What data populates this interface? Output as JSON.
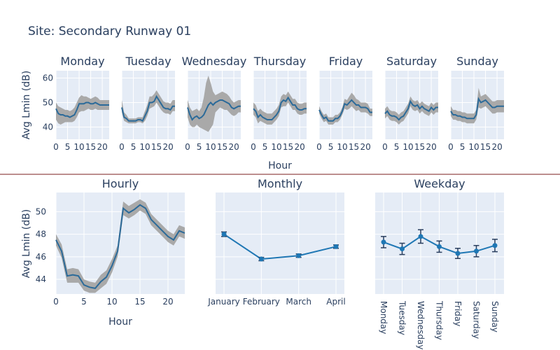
{
  "page": {
    "title": "Site: Secondary Runway 01"
  },
  "colors": {
    "plot_bg": "#e5ecf6",
    "grid": "#ffffff",
    "line": "#2b6a99",
    "band": "#a9a9a9",
    "marker": "#1f77b4",
    "divider": "#7b1c1c",
    "text": "#2a3f5f"
  },
  "chart_data": [
    {
      "type": "line",
      "name": "daily-grid",
      "ylabel": "Avg Lmin (dB)",
      "xlabel": "Hour",
      "ylim": [
        35,
        63
      ],
      "xlim": [
        0,
        23
      ],
      "yticks": [
        40,
        50,
        60
      ],
      "xticks": [
        0,
        5,
        10,
        15,
        20
      ],
      "panels": [
        {
          "day": "Monday",
          "y": [
            47.5,
            45.5,
            45,
            45,
            44.5,
            44.5,
            44,
            44.5,
            45,
            47,
            49.5,
            49.5,
            49.5,
            50,
            50,
            49.5,
            49.5,
            50,
            49.5,
            49,
            49,
            49,
            49,
            49
          ],
          "lo": [
            43,
            41.5,
            41,
            41.5,
            42,
            42,
            42,
            42,
            42.5,
            44,
            46,
            46.5,
            46.5,
            47,
            47.5,
            47,
            47,
            47.5,
            47,
            47,
            47,
            47,
            47,
            47
          ],
          "hi": [
            50,
            48.5,
            48,
            47.5,
            47,
            47,
            46.5,
            47,
            48,
            50,
            52,
            53,
            52.5,
            52.5,
            52,
            51.5,
            52,
            52.5,
            52,
            51,
            51,
            51,
            51,
            51
          ]
        },
        {
          "day": "Tuesday",
          "y": [
            48,
            44,
            43.5,
            42.5,
            42.5,
            42.5,
            42.5,
            43,
            43,
            42.5,
            44.5,
            46.5,
            50,
            50,
            50.5,
            52.5,
            51,
            49.5,
            48,
            47.5,
            47.5,
            47,
            48.5,
            48.5
          ],
          "lo": [
            46,
            42.5,
            42,
            41.5,
            41.5,
            41.5,
            41.5,
            42,
            42,
            41.5,
            42.5,
            44.5,
            47.5,
            48,
            48.5,
            50,
            48.5,
            47,
            46,
            45.5,
            45.5,
            45,
            46.5,
            46.5
          ],
          "hi": [
            51,
            46,
            45,
            43.5,
            43.5,
            43.5,
            43.5,
            44,
            44,
            44,
            46.5,
            49,
            52.5,
            52.5,
            53.5,
            55,
            53.5,
            52,
            50.5,
            50,
            50,
            49.5,
            51,
            51
          ]
        },
        {
          "day": "Wednesday",
          "y": [
            48,
            45,
            43,
            44,
            44.5,
            43.5,
            44,
            45,
            47,
            49,
            50,
            49,
            50,
            50.5,
            51,
            51,
            50.5,
            50,
            49.5,
            48,
            47.5,
            48,
            48.5,
            48.5
          ],
          "lo": [
            44,
            41,
            40,
            40,
            41,
            40,
            39.5,
            39,
            38.5,
            38,
            39.5,
            41,
            46,
            47,
            48,
            47.5,
            47,
            47,
            46,
            45,
            44.5,
            45,
            46,
            46
          ],
          "hi": [
            51,
            48,
            46.5,
            47,
            47.5,
            46.5,
            48,
            52,
            58,
            61,
            58,
            54.5,
            53,
            53.5,
            54,
            54.5,
            54,
            53.5,
            52.5,
            51,
            50,
            50.5,
            51,
            51
          ]
        },
        {
          "day": "Thursday",
          "y": [
            47.5,
            46.5,
            44,
            45,
            44,
            43.5,
            43,
            43,
            43,
            44,
            45,
            46.5,
            50,
            51,
            50.5,
            52,
            50.5,
            49,
            49,
            47.5,
            47,
            47,
            47.5,
            47.5
          ],
          "lo": [
            45,
            44,
            41.5,
            42.5,
            42,
            41.5,
            41,
            41,
            41,
            42,
            43,
            44.5,
            48,
            48.5,
            48.5,
            50,
            48.5,
            47,
            47,
            45.5,
            45,
            45,
            45.5,
            45.5
          ],
          "hi": [
            50,
            49,
            46.5,
            47.5,
            46.5,
            46,
            45.5,
            45.5,
            45.5,
            46.5,
            47.5,
            49,
            52.5,
            53.5,
            53,
            54.5,
            53,
            51.5,
            51.5,
            50,
            49.5,
            49.5,
            50,
            50
          ]
        },
        {
          "day": "Friday",
          "y": [
            47,
            45,
            43.5,
            44,
            42.5,
            42.5,
            42.5,
            43.5,
            43.5,
            44.5,
            46.5,
            49.5,
            49,
            50,
            51,
            50,
            49,
            49,
            48,
            48,
            48,
            47.5,
            46,
            46
          ],
          "lo": [
            45.5,
            43.5,
            42,
            42.5,
            41,
            41,
            41,
            42,
            42,
            43,
            45,
            47.5,
            47,
            47.5,
            48.5,
            47.5,
            46.5,
            47,
            46,
            46,
            46,
            45.5,
            44.5,
            44.5
          ],
          "hi": [
            48.5,
            46.5,
            45,
            45.5,
            44,
            44,
            44,
            45,
            45,
            46,
            48,
            51.5,
            51,
            52.5,
            54,
            53,
            51.5,
            51,
            50,
            50,
            50,
            49.5,
            47.5,
            47.5
          ]
        },
        {
          "day": "Saturday",
          "y": [
            45.5,
            46.5,
            45,
            44.5,
            44.5,
            44,
            43,
            44,
            44.5,
            46,
            47.5,
            50.5,
            49,
            48.5,
            49,
            47.5,
            48.5,
            47.5,
            47,
            46.5,
            48,
            47,
            48,
            48
          ],
          "lo": [
            43.5,
            44.5,
            43,
            42.5,
            42.5,
            42,
            41,
            42,
            42.5,
            44,
            45.5,
            48.5,
            47,
            46.5,
            47,
            45.5,
            46.5,
            45.5,
            45,
            44.5,
            46,
            45,
            46,
            46
          ],
          "hi": [
            47.5,
            48.5,
            47,
            46.5,
            46.5,
            46,
            45,
            46,
            46.5,
            48,
            49.5,
            52.5,
            51,
            50.5,
            51,
            49.5,
            50.5,
            49.5,
            49,
            48.5,
            50,
            49,
            50,
            50
          ]
        },
        {
          "day": "Sunday",
          "y": [
            46.5,
            45,
            45,
            44.5,
            44.5,
            44,
            44,
            43.5,
            43.5,
            43.5,
            43.5,
            45,
            51.5,
            50,
            50.5,
            51,
            50,
            49,
            48,
            48,
            48.5,
            48.5,
            48.5,
            48.5
          ],
          "lo": [
            44.5,
            43,
            43,
            42.5,
            42.5,
            42,
            42,
            41.5,
            41.5,
            41.5,
            41.5,
            43,
            48,
            47.5,
            48,
            48.5,
            47.5,
            46.5,
            45.5,
            45.5,
            46,
            46,
            46,
            46
          ],
          "hi": [
            48.5,
            47,
            47,
            46.5,
            46.5,
            46,
            46,
            45.5,
            45.5,
            45.5,
            45.5,
            47,
            56,
            52.5,
            53,
            53.5,
            52.5,
            51.5,
            50.5,
            50.5,
            51,
            51,
            51,
            51
          ]
        }
      ]
    },
    {
      "type": "line",
      "name": "Hourly",
      "title": "Hourly",
      "xlabel": "Hour",
      "ylabel": "Avg Lmin (dB)",
      "xlim": [
        0,
        23
      ],
      "ylim": [
        42.7,
        51.7
      ],
      "xticks": [
        0,
        5,
        10,
        15,
        20
      ],
      "yticks": [
        44,
        46,
        48,
        50
      ],
      "x": [
        0,
        1,
        2,
        3,
        4,
        5,
        6,
        7,
        8,
        9,
        10,
        11,
        12,
        13,
        14,
        15,
        16,
        17,
        18,
        19,
        20,
        21,
        22,
        23
      ],
      "y": [
        47.5,
        46.5,
        44.3,
        44.4,
        44.3,
        43.5,
        43.3,
        43.2,
        43.8,
        44.2,
        45.2,
        46.5,
        50.3,
        49.9,
        50.2,
        50.6,
        50.3,
        49.3,
        48.8,
        48.3,
        47.8,
        47.5,
        48.3,
        48.1
      ],
      "lo": [
        47.0,
        45.9,
        43.7,
        43.7,
        43.7,
        43.0,
        42.8,
        42.8,
        43.2,
        43.6,
        44.6,
        46.0,
        49.7,
        49.4,
        49.7,
        50.1,
        49.8,
        48.8,
        48.3,
        47.8,
        47.3,
        47.0,
        47.8,
        47.6
      ],
      "hi": [
        48.0,
        47.1,
        44.9,
        45.0,
        44.9,
        44.0,
        43.8,
        43.7,
        44.4,
        44.8,
        45.8,
        47.0,
        50.9,
        50.5,
        50.8,
        51.1,
        50.8,
        49.8,
        49.3,
        48.8,
        48.3,
        48.0,
        48.8,
        48.6
      ]
    },
    {
      "type": "line",
      "name": "Monthly",
      "title": "Monthly",
      "ylim": [
        42.7,
        51.7
      ],
      "categories": [
        "January",
        "February",
        "March",
        "April"
      ],
      "values": [
        48.0,
        45.8,
        46.1,
        46.9
      ],
      "err": [
        0.2,
        0.15,
        0.15,
        0.15
      ]
    },
    {
      "type": "line",
      "name": "Weekday",
      "title": "Weekday",
      "ylim": [
        42.7,
        51.7
      ],
      "categories": [
        "Monday",
        "Tuesday",
        "Wednesday",
        "Thursday",
        "Friday",
        "Saturday",
        "Sunday"
      ],
      "values": [
        47.3,
        46.7,
        47.8,
        46.9,
        46.3,
        46.5,
        47.0
      ],
      "err": [
        0.5,
        0.5,
        0.6,
        0.5,
        0.45,
        0.5,
        0.55
      ]
    }
  ]
}
